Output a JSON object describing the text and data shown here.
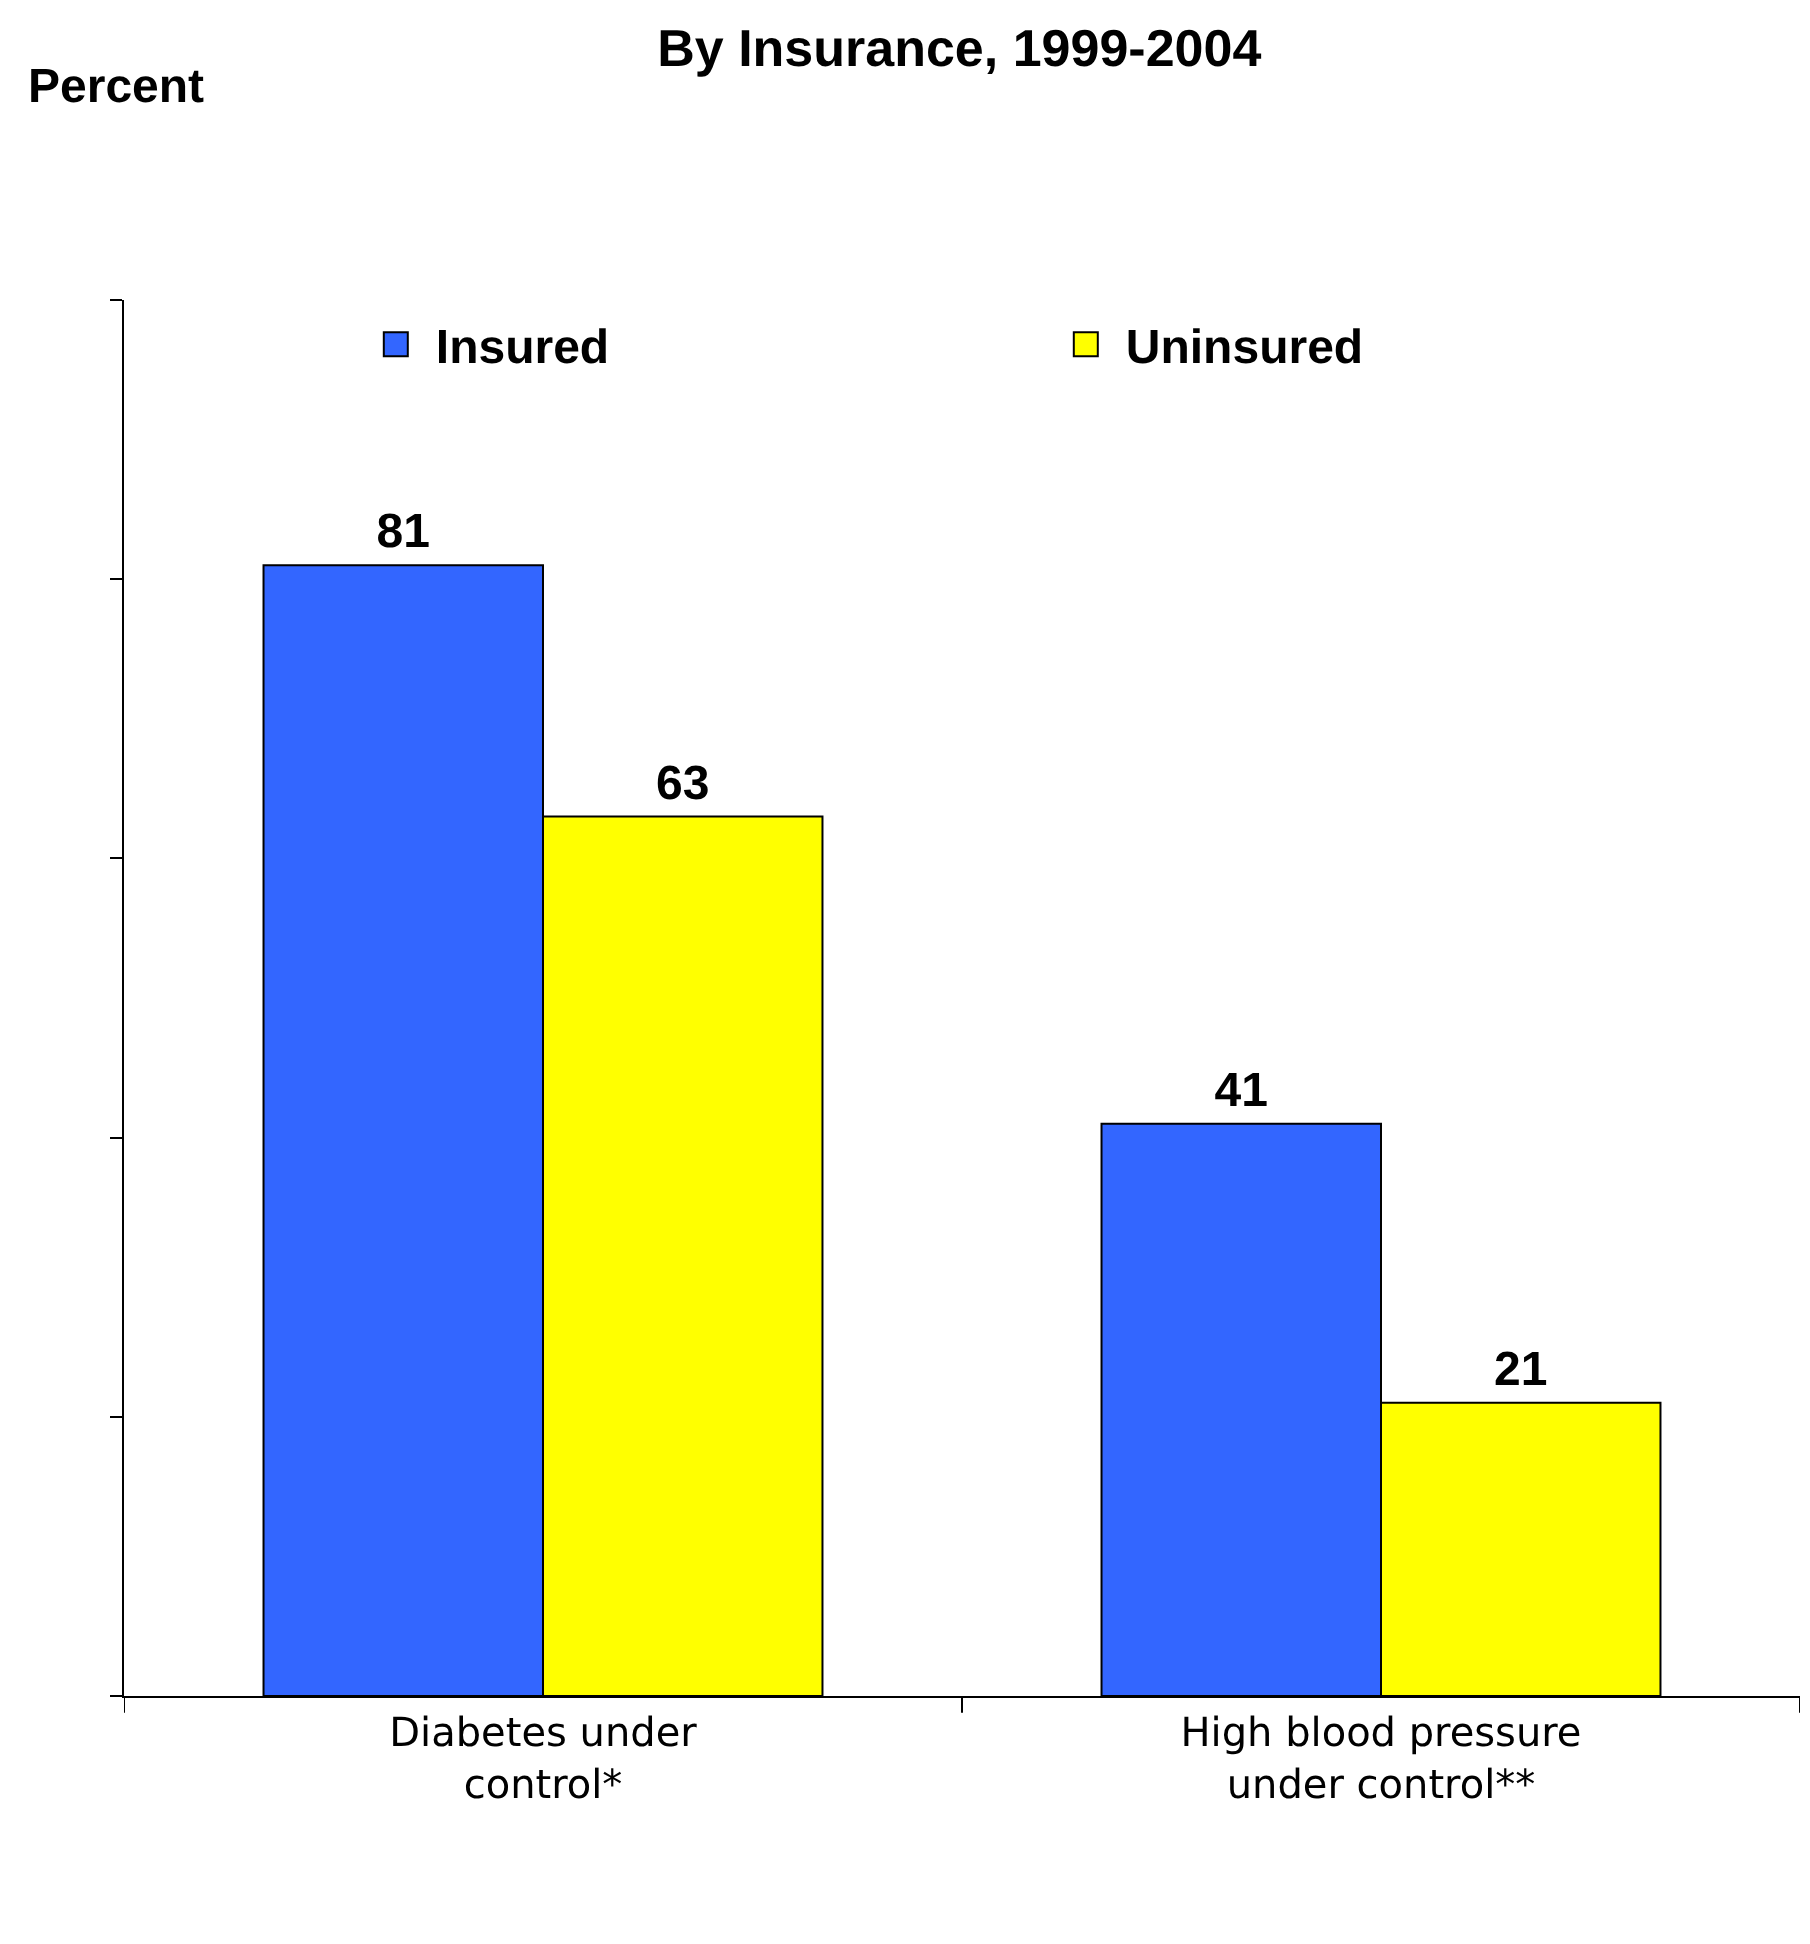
{
  "chart_data": {
    "type": "bar",
    "title": "By Insurance, 1999-2004",
    "ylabel": "Percent",
    "categories": [
      "Diabetes under\ncontrol*",
      "High blood pressure\nunder control**"
    ],
    "series": [
      {
        "name": "Insured",
        "color": "#3366ff",
        "values": [
          81,
          41
        ]
      },
      {
        "name": "Uninsured",
        "color": "#ffff00",
        "values": [
          63,
          21
        ]
      }
    ],
    "ylim": [
      0,
      100
    ],
    "yticks": [
      {
        "value": 0,
        "label": null
      },
      {
        "value": 20,
        "label": null
      },
      {
        "value": 40,
        "label": null
      },
      {
        "value": 60,
        "label": null
      },
      {
        "value": 80,
        "label": null
      },
      {
        "value": 100,
        "label": null
      }
    ],
    "tick_labels": "x",
    "data_labels": true,
    "legend": "top"
  }
}
